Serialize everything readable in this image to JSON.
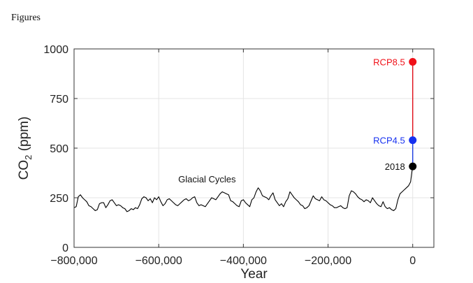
{
  "page": {
    "header": "Figures"
  },
  "chart_data": {
    "type": "line",
    "title": "",
    "xlabel": "Year",
    "ylabel_main": "CO",
    "ylabel_sub": "2",
    "ylabel_unit": " (ppm)",
    "xlim": [
      -800000,
      50000
    ],
    "ylim": [
      0,
      1000
    ],
    "grid": true,
    "x_ticks": [
      {
        "value": -800000,
        "label": "−800,000"
      },
      {
        "value": -600000,
        "label": "−600,000"
      },
      {
        "value": -400000,
        "label": "−400,000"
      },
      {
        "value": -200000,
        "label": "−200,000"
      },
      {
        "value": 0,
        "label": "0"
      }
    ],
    "y_ticks": [
      {
        "value": 0,
        "label": "0"
      },
      {
        "value": 250,
        "label": "250"
      },
      {
        "value": 500,
        "label": "500"
      },
      {
        "value": 750,
        "label": "750"
      },
      {
        "value": 1000,
        "label": "1000"
      }
    ],
    "series": [
      {
        "name": "Glacial Cycles",
        "color": "#000000",
        "x": [
          -800000,
          -795000,
          -790000,
          -785000,
          -780000,
          -775000,
          -770000,
          -765000,
          -760000,
          -755000,
          -750000,
          -745000,
          -740000,
          -735000,
          -730000,
          -725000,
          -720000,
          -715000,
          -710000,
          -705000,
          -700000,
          -695000,
          -690000,
          -685000,
          -680000,
          -675000,
          -670000,
          -665000,
          -660000,
          -655000,
          -650000,
          -645000,
          -640000,
          -635000,
          -630000,
          -625000,
          -620000,
          -615000,
          -610000,
          -605000,
          -600000,
          -595000,
          -590000,
          -585000,
          -580000,
          -575000,
          -570000,
          -565000,
          -560000,
          -555000,
          -550000,
          -545000,
          -540000,
          -535000,
          -530000,
          -525000,
          -520000,
          -515000,
          -510000,
          -505000,
          -500000,
          -495000,
          -490000,
          -485000,
          -480000,
          -475000,
          -470000,
          -465000,
          -460000,
          -455000,
          -450000,
          -445000,
          -440000,
          -435000,
          -430000,
          -425000,
          -420000,
          -415000,
          -410000,
          -405000,
          -400000,
          -395000,
          -390000,
          -385000,
          -380000,
          -375000,
          -370000,
          -365000,
          -360000,
          -355000,
          -350000,
          -345000,
          -340000,
          -335000,
          -330000,
          -325000,
          -320000,
          -315000,
          -310000,
          -305000,
          -300000,
          -295000,
          -290000,
          -285000,
          -280000,
          -275000,
          -270000,
          -265000,
          -260000,
          -255000,
          -250000,
          -245000,
          -240000,
          -235000,
          -230000,
          -225000,
          -220000,
          -215000,
          -210000,
          -205000,
          -200000,
          -195000,
          -190000,
          -185000,
          -180000,
          -175000,
          -170000,
          -165000,
          -160000,
          -155000,
          -150000,
          -145000,
          -140000,
          -135000,
          -130000,
          -125000,
          -120000,
          -115000,
          -110000,
          -105000,
          -100000,
          -95000,
          -90000,
          -85000,
          -80000,
          -75000,
          -70000,
          -65000,
          -60000,
          -55000,
          -50000,
          -45000,
          -40000,
          -35000,
          -30000,
          -25000,
          -20000,
          -15000,
          -10000,
          -5000,
          -2000,
          0
        ],
        "y": [
          200,
          205,
          255,
          265,
          250,
          240,
          230,
          210,
          205,
          195,
          185,
          190,
          220,
          225,
          225,
          200,
          215,
          235,
          240,
          225,
          210,
          215,
          210,
          200,
          195,
          180,
          185,
          195,
          190,
          200,
          195,
          215,
          245,
          255,
          250,
          235,
          245,
          225,
          250,
          240,
          255,
          230,
          210,
          220,
          240,
          245,
          235,
          225,
          215,
          210,
          220,
          230,
          240,
          245,
          235,
          240,
          250,
          255,
          225,
          210,
          215,
          210,
          205,
          220,
          235,
          250,
          245,
          240,
          255,
          270,
          280,
          275,
          270,
          265,
          235,
          230,
          220,
          210,
          205,
          235,
          240,
          225,
          215,
          205,
          240,
          250,
          280,
          300,
          285,
          260,
          255,
          250,
          240,
          260,
          275,
          240,
          225,
          210,
          220,
          205,
          230,
          245,
          280,
          265,
          250,
          240,
          230,
          215,
          210,
          195,
          200,
          210,
          235,
          260,
          245,
          240,
          235,
          255,
          240,
          235,
          225,
          215,
          210,
          200,
          200,
          205,
          210,
          200,
          195,
          200,
          260,
          285,
          280,
          270,
          255,
          245,
          240,
          230,
          240,
          235,
          225,
          250,
          235,
          220,
          210,
          205,
          230,
          205,
          195,
          200,
          190,
          185,
          195,
          240,
          270,
          280,
          290,
          300,
          310,
          330,
          380,
          408
        ]
      },
      {
        "name": "RCP4.5",
        "color": "#1f3fe0",
        "x": [
          0,
          0
        ],
        "y": [
          408,
          540
        ]
      },
      {
        "name": "RCP8.5",
        "color": "#e0101a",
        "x": [
          0,
          0
        ],
        "y": [
          540,
          935
        ]
      }
    ],
    "points": [
      {
        "label": "RCP8.5",
        "x": 0,
        "y": 935,
        "color": "#f01018"
      },
      {
        "label": "RCP4.5",
        "x": 0,
        "y": 540,
        "color": "#1530f0"
      },
      {
        "label": "2018",
        "x": 0,
        "y": 408,
        "color": "#000000"
      }
    ],
    "annotations": [
      {
        "text": "Glacial Cycles",
        "x": -400000,
        "y": 345
      }
    ]
  }
}
